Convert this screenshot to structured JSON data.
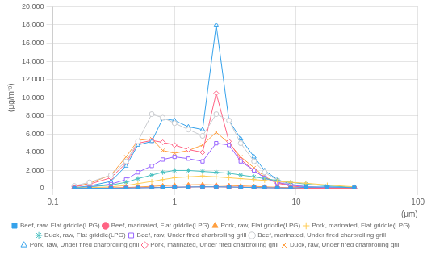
{
  "chart_data": {
    "type": "line",
    "x_label": "(μm)",
    "y_label": "(μg/m⁻³)",
    "x": [
      0.15,
      0.2,
      0.3,
      0.4,
      0.5,
      0.65,
      0.8,
      1.0,
      1.3,
      1.7,
      2.2,
      2.8,
      3.5,
      4.5,
      5.5,
      7.0,
      9.0,
      12.0,
      18.0,
      30.0
    ],
    "series": [
      {
        "name": "Beef, raw, Flat griddle(LPG)",
        "marker": "square",
        "values": [
          30,
          40,
          50,
          60,
          80,
          100,
          120,
          150,
          180,
          200,
          200,
          180,
          150,
          120,
          100,
          80,
          60,
          150,
          200,
          100
        ]
      },
      {
        "name": "Beef, marinated, Flat griddle(LPG)",
        "marker": "circle",
        "values": [
          30,
          40,
          60,
          80,
          100,
          120,
          140,
          160,
          180,
          200,
          200,
          180,
          160,
          130,
          100,
          80,
          60,
          50,
          40,
          30
        ]
      },
      {
        "name": "Pork, raw, Flat griddle(LPG)",
        "marker": "triangle",
        "values": [
          30,
          50,
          80,
          120,
          180,
          250,
          320,
          380,
          420,
          450,
          400,
          350,
          300,
          250,
          200,
          150,
          100,
          80,
          50,
          30
        ]
      },
      {
        "name": "Pork, marinated, Flat griddle(LPG)",
        "marker": "plus",
        "values": [
          50,
          100,
          200,
          350,
          550,
          800,
          1000,
          1200,
          1300,
          1400,
          1300,
          1200,
          1100,
          1000,
          900,
          800,
          700,
          600,
          400,
          200
        ]
      },
      {
        "name": "Duck, raw, Flat griddle(LPG)",
        "marker": "star",
        "values": [
          100,
          200,
          400,
          700,
          1100,
          1500,
          1800,
          2000,
          2000,
          1900,
          1800,
          1700,
          1500,
          1300,
          1100,
          900,
          700,
          500,
          300,
          150
        ]
      },
      {
        "name": "Beef, raw, Under fired charbroiling grill",
        "marker": "square_open",
        "values": [
          100,
          200,
          500,
          1000,
          1800,
          2500,
          3200,
          3500,
          3300,
          3000,
          5000,
          4800,
          3000,
          2000,
          1200,
          700,
          400,
          200,
          100,
          50
        ]
      },
      {
        "name": "Beef, marinated, Under fired charbroiling grill",
        "marker": "circle_open",
        "values": [
          300,
          700,
          1500,
          3000,
          5200,
          8200,
          7800,
          7200,
          6500,
          5800,
          8200,
          7500,
          5000,
          3000,
          1800,
          900,
          400,
          200,
          100,
          50
        ]
      },
      {
        "name": "Pork, raw, Under fired charbroiling grill",
        "marker": "triangle_open",
        "values": [
          100,
          300,
          800,
          2500,
          4800,
          5200,
          7700,
          7500,
          6800,
          6500,
          18000,
          7500,
          5500,
          3500,
          2000,
          1000,
          500,
          200,
          100,
          50
        ]
      },
      {
        "name": "Pork, marinated, Under fired charbroiling grill",
        "marker": "diamond_open",
        "values": [
          200,
          500,
          1200,
          2800,
          5000,
          5300,
          5100,
          4800,
          4300,
          4000,
          10500,
          5200,
          3200,
          2000,
          1200,
          600,
          300,
          150,
          80,
          40
        ]
      },
      {
        "name": "Duck, raw, Under fired charbroiling grill",
        "marker": "cross",
        "values": [
          200,
          600,
          1500,
          3500,
          5300,
          5500,
          4200,
          3900,
          4200,
          4800,
          6200,
          5000,
          3500,
          2300,
          1300,
          700,
          300,
          150,
          80,
          40
        ]
      }
    ],
    "log": "x",
    "xlim": [
      0.1,
      100
    ],
    "xticks": [
      0.1,
      1,
      10,
      100
    ],
    "ylim": [
      0,
      20000
    ],
    "yticks": [
      0,
      {
        "value": 2000,
        "label": "2,000"
      },
      {
        "value": 4000,
        "label": "4,000"
      },
      {
        "value": 6000,
        "label": "6,000"
      },
      {
        "value": 8000,
        "label": "8,000"
      },
      {
        "value": 10000,
        "label": "10,000"
      },
      {
        "value": 12000,
        "label": "12,000"
      },
      {
        "value": 14000,
        "label": "14,000"
      },
      {
        "value": 16000,
        "label": "16,000"
      },
      {
        "value": 18000,
        "label": "18,000"
      },
      {
        "value": 20000,
        "label": "20,000"
      }
    ],
    "line_style": "solid",
    "grid": true,
    "legend": "bottom"
  }
}
